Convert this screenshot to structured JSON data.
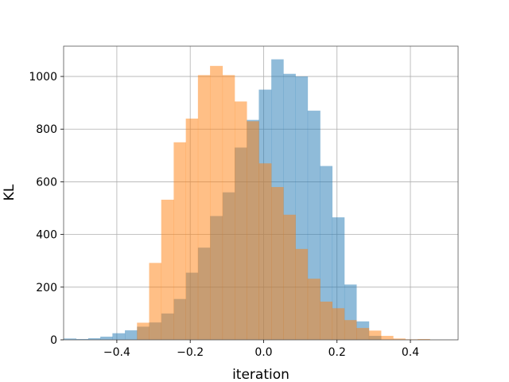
{
  "chart_data": {
    "type": "bar",
    "xlabel": "iteration",
    "ylabel": "KL",
    "xlim": [
      -0.545,
      0.53
    ],
    "ylim": [
      0,
      1115
    ],
    "grid": true,
    "x_ticks": [
      -0.4,
      -0.2,
      0.0,
      0.2,
      0.4
    ],
    "x_tick_labels": [
      "−0.4",
      "−0.2",
      "0.0",
      "0.2",
      "0.4"
    ],
    "y_ticks": [
      0,
      200,
      400,
      600,
      800,
      1000
    ],
    "y_tick_labels": [
      "0",
      "200",
      "400",
      "600",
      "800",
      "1000"
    ],
    "colors": {
      "blue": "#1f77b4",
      "orange": "#ff7f0e"
    },
    "alpha": 0.5,
    "series": [
      {
        "bin_edges": [
          -0.545,
          -0.511,
          -0.478,
          -0.445,
          -0.412,
          -0.378,
          -0.345,
          -0.312,
          -0.279,
          -0.245,
          -0.212,
          -0.179,
          -0.146,
          -0.112,
          -0.079,
          -0.046,
          -0.013,
          0.021,
          0.054,
          0.087,
          0.12,
          0.154,
          0.187,
          0.22,
          0.253,
          0.287,
          0.32,
          0.353,
          0.386
        ],
        "values": [
          5,
          3,
          6,
          12,
          25,
          36,
          50,
          66,
          100,
          155,
          255,
          350,
          470,
          560,
          730,
          835,
          950,
          1065,
          1010,
          1000,
          870,
          660,
          465,
          210,
          70,
          15,
          0,
          0
        ],
        "color": "blue"
      },
      {
        "bin_edges": [
          -0.345,
          -0.312,
          -0.279,
          -0.245,
          -0.212,
          -0.179,
          -0.146,
          -0.112,
          -0.079,
          -0.046,
          -0.013,
          0.021,
          0.054,
          0.087,
          0.12,
          0.154,
          0.187,
          0.22,
          0.253,
          0.287,
          0.32,
          0.353,
          0.386,
          0.42,
          0.453
        ],
        "values": [
          65,
          292,
          532,
          750,
          840,
          1005,
          1040,
          1005,
          905,
          830,
          670,
          580,
          475,
          345,
          232,
          145,
          120,
          75,
          45,
          35,
          15,
          5,
          2,
          3
        ],
        "color": "orange"
      }
    ]
  }
}
